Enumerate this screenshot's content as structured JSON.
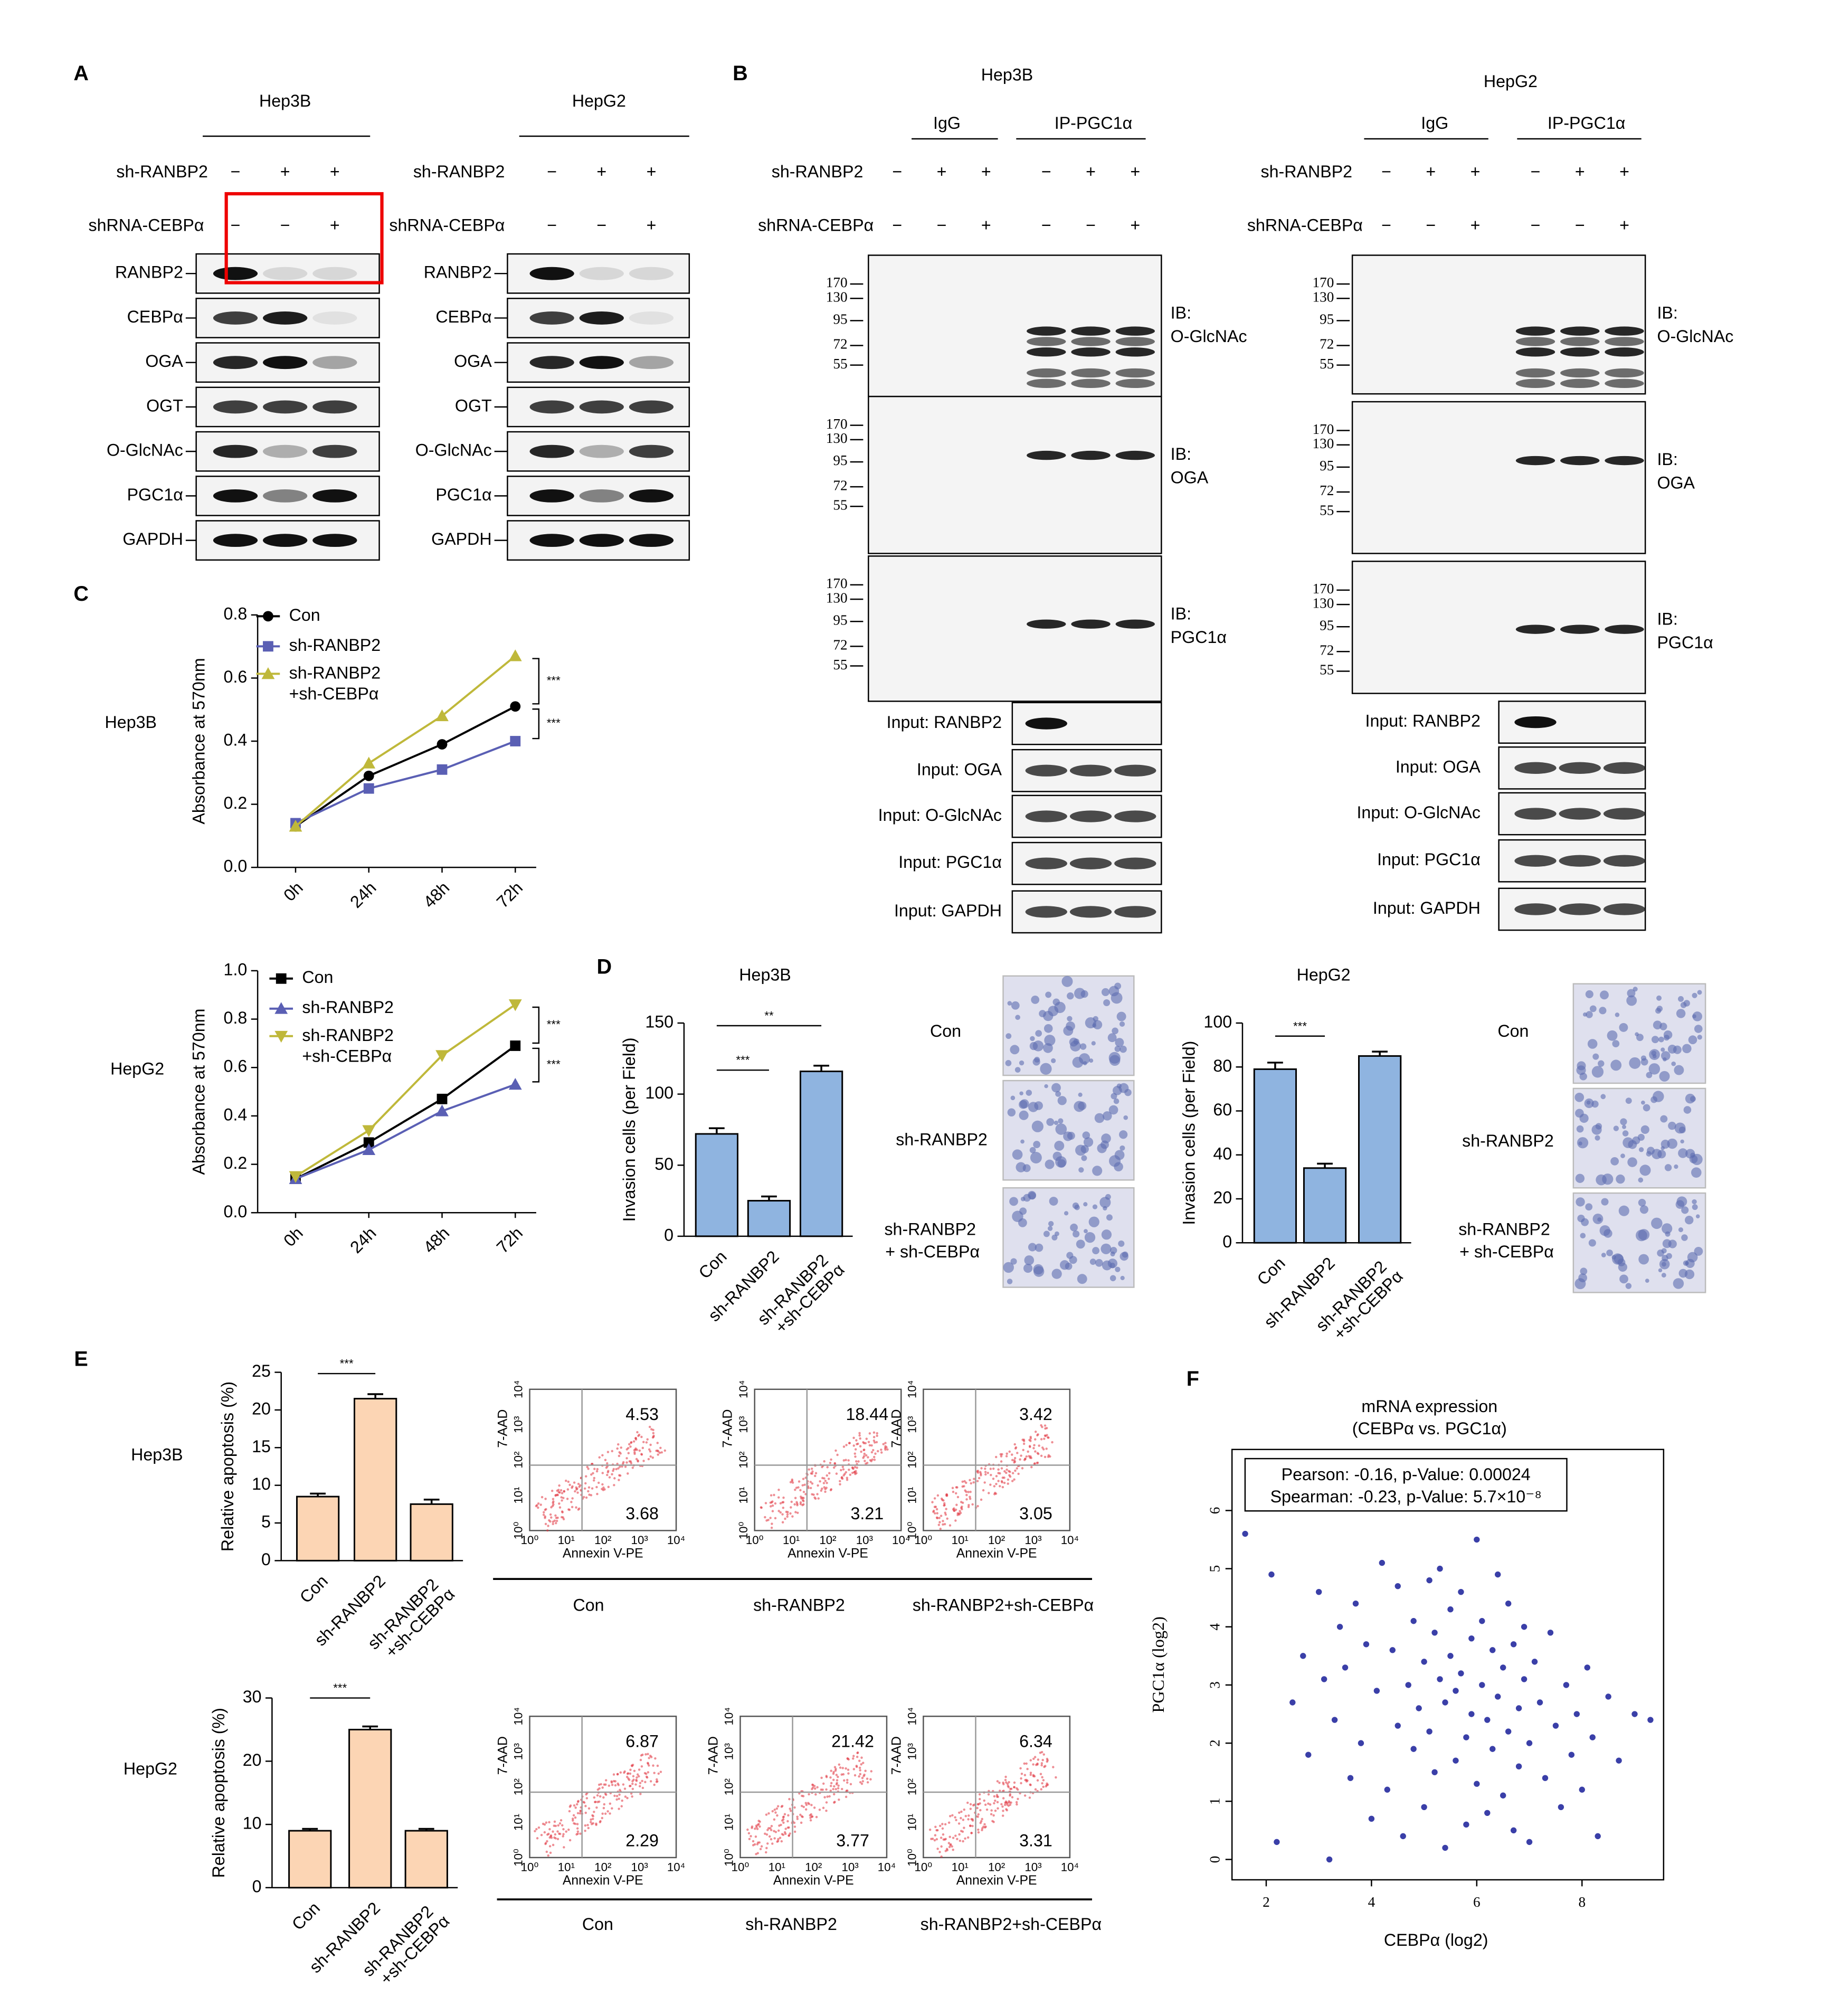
{
  "panel_labels": [
    "A",
    "B",
    "C",
    "D",
    "E",
    "F"
  ],
  "blot_A": {
    "cells": [
      "Hep3B",
      "HepG2"
    ],
    "conditions": [
      "sh-RANBP2",
      "shRNA-CEBPα"
    ],
    "signs": [
      [
        "−",
        "+",
        "+"
      ],
      [
        "−",
        "−",
        "+"
      ]
    ],
    "bands": [
      "RANBP2",
      "CEBPα",
      "OGA",
      "OGT",
      "O-GlcNAc",
      "PGC1α",
      "GAPDH"
    ]
  },
  "blot_B": {
    "cells": [
      "Hep3B",
      "HepG2"
    ],
    "groups": [
      "IgG",
      "IP-PGC1α"
    ],
    "conditions": [
      "sh-RANBP2",
      "shRNA-CEBPα"
    ],
    "signs": [
      [
        "−",
        "+",
        "+",
        "−",
        "+",
        "+"
      ],
      [
        "−",
        "−",
        "+",
        "−",
        "−",
        "+"
      ]
    ],
    "ib": [
      [
        "IB:",
        "O-GlcNAc"
      ],
      [
        "IB:",
        "OGA"
      ],
      [
        "IB:",
        "PGC1α"
      ]
    ],
    "markers": [
      170,
      130,
      95,
      72,
      55
    ],
    "inputs": [
      "Input: RANBP2",
      "Input: OGA",
      "Input: O-GlcNAc",
      "Input: PGC1α",
      "Input: GAPDH"
    ]
  },
  "chart_data": [
    {
      "type": "line",
      "title": "Hep3B",
      "ylabel": "Absorbance at 570nm",
      "categories": [
        "0h",
        "24h",
        "48h",
        "72h"
      ],
      "series": [
        {
          "name": "Con",
          "color": "#000000",
          "marker": "circle",
          "values": [
            0.13,
            0.29,
            0.39,
            0.51
          ]
        },
        {
          "name": "sh-RANBP2",
          "color": "#5a5fb4",
          "marker": "square",
          "values": [
            0.14,
            0.25,
            0.31,
            0.4
          ]
        },
        {
          "name": "sh-RANBP2 +sh-CEBPα",
          "color": "#bfb83a",
          "marker": "triangle",
          "values": [
            0.13,
            0.33,
            0.48,
            0.67
          ]
        }
      ],
      "ylim": [
        0,
        0.8
      ],
      "yticks": [
        {
          "value": 0,
          "label": "0.0"
        },
        0.2,
        0.4,
        0.6,
        0.8
      ],
      "annotations": [
        "***",
        "***"
      ]
    },
    {
      "type": "line",
      "title": "HepG2",
      "ylabel": "Absorbance at 570nm",
      "categories": [
        "0h",
        "24h",
        "48h",
        "72h"
      ],
      "series": [
        {
          "name": "Con",
          "color": "#000000",
          "marker": "square",
          "values": [
            0.14,
            0.29,
            0.47,
            0.69
          ]
        },
        {
          "name": "sh-RANBP2",
          "color": "#5a5fb4",
          "marker": "triangle",
          "values": [
            0.14,
            0.26,
            0.42,
            0.53
          ]
        },
        {
          "name": "sh-RANBP2 +sh-CEBPα",
          "color": "#bfb83a",
          "marker": "triangle-down",
          "values": [
            0.15,
            0.34,
            0.65,
            0.86
          ]
        }
      ],
      "ylim": [
        0,
        1
      ],
      "yticks": [
        {
          "value": 0,
          "label": "0.0"
        },
        0.2,
        0.4,
        0.6,
        0.8,
        {
          "value": 1,
          "label": "1.0"
        }
      ],
      "annotations": [
        "***",
        "***"
      ]
    },
    {
      "type": "bar",
      "title": "Hep3B",
      "ylabel": "Invasion cells (per Field)",
      "categories": [
        "Con",
        "sh-RANBP2",
        "sh-RANBP2 +sh-CEBPα"
      ],
      "values": [
        72,
        25,
        116
      ],
      "errors": [
        4,
        3,
        4
      ],
      "color": "#8fb4e0",
      "ylim": [
        0,
        150
      ],
      "yticks": [
        0,
        50,
        100,
        150
      ],
      "annotations": [
        "***",
        "**"
      ]
    },
    {
      "type": "bar",
      "title": "HepG2",
      "ylabel": "Invasion cells (per Field)",
      "categories": [
        "Con",
        "sh-RANBP2",
        "sh-RANBP2 +sh-CEBPα"
      ],
      "values": [
        79,
        34,
        85
      ],
      "errors": [
        3,
        2,
        2
      ],
      "color": "#8fb4e0",
      "ylim": [
        0,
        100
      ],
      "yticks": [
        0,
        20,
        40,
        60,
        80,
        100
      ],
      "annotations": [
        "***"
      ]
    },
    {
      "type": "bar",
      "title": "Hep3B",
      "ylabel": "Relative apoptosis (%)",
      "categories": [
        "Con",
        "sh-RANBP2",
        "sh-RANBP2 +sh-CEBPα"
      ],
      "values": [
        8.5,
        21.5,
        7.5
      ],
      "errors": [
        0.4,
        0.6,
        0.6
      ],
      "color": "#fcd5b4",
      "ylim": [
        0,
        25
      ],
      "yticks": [
        0,
        5,
        10,
        15,
        20,
        25
      ],
      "annotations": [
        "***"
      ]
    },
    {
      "type": "bar",
      "title": "HepG2",
      "ylabel": "Relative apoptosis (%)",
      "categories": [
        "Con",
        "sh-RANBP2",
        "sh-RANBP2 +sh-CEBPα"
      ],
      "values": [
        9,
        25,
        9
      ],
      "errors": [
        0.3,
        0.5,
        0.3
      ],
      "color": "#fcd5b4",
      "ylim": [
        0,
        30
      ],
      "yticks": [
        0,
        10,
        20,
        30
      ],
      "annotations": [
        "***"
      ]
    },
    {
      "type": "scatter",
      "title": "mRNA expression",
      "subtitle": "(CEBPα vs. PGC1α)",
      "xlabel": "CEBPα (log2)",
      "ylabel": "PGC1α (log2)",
      "annotations": [
        "Pearson: -0.16, p-Value: 0.00024",
        "Spearman: -0.23, p-Value: 5.7×10⁻⁸"
      ],
      "color": "#3a3fa8",
      "xlim": [
        1.35,
        9.55
      ],
      "xticks": [
        2,
        4,
        6,
        8
      ],
      "ylim": [
        -0.35,
        7.05
      ],
      "yticks": [
        0,
        1,
        2,
        3,
        4,
        5,
        6
      ],
      "x": [
        1.6,
        2.1,
        2.2,
        2.5,
        2.7,
        2.8,
        3.0,
        3.1,
        3.2,
        3.3,
        3.4,
        3.5,
        3.6,
        3.7,
        3.8,
        3.9,
        4.0,
        4.1,
        4.2,
        4.3,
        4.4,
        4.5,
        4.5,
        4.6,
        4.7,
        4.8,
        4.8,
        4.9,
        5.0,
        5.0,
        5.1,
        5.1,
        5.2,
        5.2,
        5.3,
        5.3,
        5.4,
        5.4,
        5.5,
        5.5,
        5.6,
        5.6,
        5.7,
        5.7,
        5.8,
        5.8,
        5.9,
        5.9,
        6.0,
        6.0,
        6.1,
        6.1,
        6.2,
        6.2,
        6.3,
        6.3,
        6.4,
        6.4,
        6.5,
        6.5,
        6.6,
        6.6,
        6.7,
        6.7,
        6.8,
        6.8,
        6.9,
        6.9,
        7.0,
        7.0,
        7.1,
        7.2,
        7.3,
        7.4,
        7.5,
        7.6,
        7.7,
        7.8,
        7.9,
        8.0,
        8.1,
        8.2,
        8.3,
        8.5,
        8.7,
        9.0,
        9.3
      ],
      "y": [
        5.6,
        4.9,
        0.3,
        2.7,
        3.5,
        1.8,
        4.6,
        3.1,
        0.0,
        2.4,
        4.0,
        3.3,
        1.4,
        4.4,
        2.0,
        3.7,
        0.7,
        2.9,
        5.1,
        1.2,
        3.6,
        2.3,
        4.7,
        0.4,
        3.0,
        1.9,
        4.1,
        2.6,
        3.4,
        0.9,
        4.8,
        2.2,
        3.9,
        1.5,
        3.1,
        5.0,
        2.7,
        0.2,
        4.3,
        3.5,
        1.7,
        2.9,
        4.6,
        3.2,
        2.1,
        0.6,
        3.8,
        2.5,
        5.5,
        1.3,
        3.0,
        4.1,
        2.4,
        0.8,
        3.6,
        1.9,
        4.9,
        2.8,
        3.3,
        1.1,
        2.2,
        4.4,
        3.7,
        0.5,
        2.6,
        1.6,
        3.1,
        4.0,
        2.0,
        0.3,
        3.4,
        2.7,
        1.4,
        3.9,
        2.3,
        0.9,
        3.0,
        1.8,
        2.5,
        1.2,
        3.3,
        2.1,
        0.4,
        2.8,
        1.7,
        2.5,
        2.4
      ]
    }
  ],
  "invasion_images": {
    "labels": [
      "Con",
      "sh-RANBP2",
      "sh-RANBP2 + sh-CEBPα"
    ]
  },
  "flow": {
    "y_axis": "7-AAD",
    "x_axis": "Annexin V-PE",
    "ticks": [
      "10⁰",
      "10¹",
      "10²",
      "10³",
      "10⁴"
    ],
    "captions": [
      "Con",
      "sh-RANBP2",
      "sh-RANBP2+sh-CEBPα"
    ],
    "hep3b": [
      [
        4.53,
        3.68
      ],
      [
        18.44,
        3.21
      ],
      [
        3.42,
        3.05
      ]
    ],
    "hepg2": [
      [
        6.87,
        2.29
      ],
      [
        21.42,
        3.77
      ],
      [
        6.34,
        3.31
      ]
    ]
  }
}
